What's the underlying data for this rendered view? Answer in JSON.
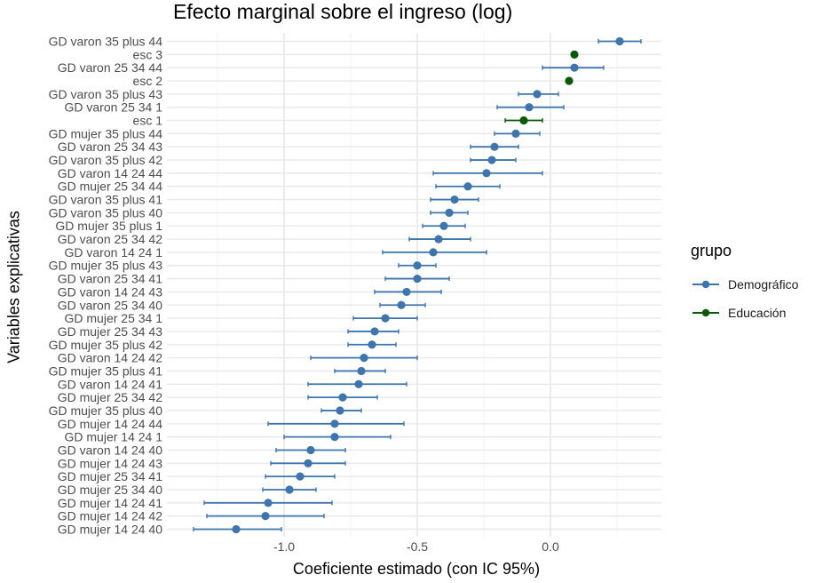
{
  "chart_data": {
    "type": "scatter",
    "title": "Efecto marginal sobre el ingreso (log)",
    "xlabel": "Coeficiente estimado (con IC 95%)",
    "ylabel": "Variables explicativas",
    "xlim": [
      -1.4,
      0.43
    ],
    "x_ticks": [
      -1.0,
      -0.5,
      0.0
    ],
    "x_tick_labels": [
      "-1.0",
      "-0.5",
      "0.0"
    ],
    "grid": true,
    "legend": {
      "title": "grupo",
      "placement": "right",
      "entries": [
        {
          "name": "Demográfico",
          "color": "#3e75ac"
        },
        {
          "name": "Educación",
          "color": "#0b5a0b"
        }
      ]
    },
    "points": [
      {
        "label": "GD varon 35 plus 44",
        "group": "Demográfico",
        "estimate": 0.26,
        "low": 0.18,
        "high": 0.34
      },
      {
        "label": "esc 3",
        "group": "Educación",
        "estimate": 0.09,
        "low": 0.09,
        "high": 0.09
      },
      {
        "label": "GD varon 25 34 44",
        "group": "Demográfico",
        "estimate": 0.09,
        "low": -0.03,
        "high": 0.2
      },
      {
        "label": "esc 2",
        "group": "Educación",
        "estimate": 0.07,
        "low": 0.07,
        "high": 0.07
      },
      {
        "label": "GD varon 35 plus 43",
        "group": "Demográfico",
        "estimate": -0.05,
        "low": -0.12,
        "high": 0.03
      },
      {
        "label": "GD varon 25 34 1",
        "group": "Demográfico",
        "estimate": -0.08,
        "low": -0.2,
        "high": 0.05
      },
      {
        "label": "esc 1",
        "group": "Educación",
        "estimate": -0.1,
        "low": -0.17,
        "high": -0.03
      },
      {
        "label": "GD mujer 35 plus 44",
        "group": "Demográfico",
        "estimate": -0.13,
        "low": -0.21,
        "high": -0.04
      },
      {
        "label": "GD varon 25 34 43",
        "group": "Demográfico",
        "estimate": -0.21,
        "low": -0.3,
        "high": -0.12
      },
      {
        "label": "GD varon 35 plus 42",
        "group": "Demográfico",
        "estimate": -0.22,
        "low": -0.3,
        "high": -0.13
      },
      {
        "label": "GD varon 14 24 44",
        "group": "Demográfico",
        "estimate": -0.24,
        "low": -0.44,
        "high": -0.03
      },
      {
        "label": "GD mujer 25 34 44",
        "group": "Demográfico",
        "estimate": -0.31,
        "low": -0.43,
        "high": -0.19
      },
      {
        "label": "GD varon 35 plus 41",
        "group": "Demográfico",
        "estimate": -0.36,
        "low": -0.45,
        "high": -0.27
      },
      {
        "label": "GD varon 35 plus 40",
        "group": "Demográfico",
        "estimate": -0.38,
        "low": -0.45,
        "high": -0.31
      },
      {
        "label": "GD mujer 35 plus 1",
        "group": "Demográfico",
        "estimate": -0.4,
        "low": -0.48,
        "high": -0.32
      },
      {
        "label": "GD varon 25 34 42",
        "group": "Demográfico",
        "estimate": -0.42,
        "low": -0.53,
        "high": -0.3
      },
      {
        "label": "GD varon 14 24 1",
        "group": "Demográfico",
        "estimate": -0.44,
        "low": -0.63,
        "high": -0.24
      },
      {
        "label": "GD mujer 35 plus 43",
        "group": "Demográfico",
        "estimate": -0.5,
        "low": -0.57,
        "high": -0.43
      },
      {
        "label": "GD varon 25 34 41",
        "group": "Demográfico",
        "estimate": -0.5,
        "low": -0.62,
        "high": -0.38
      },
      {
        "label": "GD varon 14 24 43",
        "group": "Demográfico",
        "estimate": -0.54,
        "low": -0.66,
        "high": -0.41
      },
      {
        "label": "GD varon 25 34 40",
        "group": "Demográfico",
        "estimate": -0.56,
        "low": -0.64,
        "high": -0.47
      },
      {
        "label": "GD mujer 25 34 1",
        "group": "Demográfico",
        "estimate": -0.62,
        "low": -0.74,
        "high": -0.5
      },
      {
        "label": "GD mujer 25 34 43",
        "group": "Demográfico",
        "estimate": -0.66,
        "low": -0.76,
        "high": -0.57
      },
      {
        "label": "GD mujer 35 plus 42",
        "group": "Demográfico",
        "estimate": -0.67,
        "low": -0.76,
        "high": -0.58
      },
      {
        "label": "GD varon 14 24 42",
        "group": "Demográfico",
        "estimate": -0.7,
        "low": -0.9,
        "high": -0.5
      },
      {
        "label": "GD mujer 35 plus 41",
        "group": "Demográfico",
        "estimate": -0.71,
        "low": -0.81,
        "high": -0.62
      },
      {
        "label": "GD varon 14 24 41",
        "group": "Demográfico",
        "estimate": -0.72,
        "low": -0.91,
        "high": -0.54
      },
      {
        "label": "GD mujer 25 34 42",
        "group": "Demográfico",
        "estimate": -0.78,
        "low": -0.91,
        "high": -0.65
      },
      {
        "label": "GD mujer 35 plus 40",
        "group": "Demográfico",
        "estimate": -0.79,
        "low": -0.86,
        "high": -0.71
      },
      {
        "label": "GD mujer 14 24 44",
        "group": "Demográfico",
        "estimate": -0.81,
        "low": -1.06,
        "high": -0.55
      },
      {
        "label": "GD mujer 14 24 1",
        "group": "Demográfico",
        "estimate": -0.81,
        "low": -1.0,
        "high": -0.6
      },
      {
        "label": "GD varon 14 24 40",
        "group": "Demográfico",
        "estimate": -0.9,
        "low": -1.03,
        "high": -0.77
      },
      {
        "label": "GD mujer 14 24 43",
        "group": "Demográfico",
        "estimate": -0.91,
        "low": -1.05,
        "high": -0.77
      },
      {
        "label": "GD mujer 25 34 41",
        "group": "Demográfico",
        "estimate": -0.94,
        "low": -1.07,
        "high": -0.81
      },
      {
        "label": "GD mujer 25 34 40",
        "group": "Demográfico",
        "estimate": -0.98,
        "low": -1.08,
        "high": -0.88
      },
      {
        "label": "GD mujer 14 24 41",
        "group": "Demográfico",
        "estimate": -1.06,
        "low": -1.3,
        "high": -0.82
      },
      {
        "label": "GD mujer 14 24 42",
        "group": "Demográfico",
        "estimate": -1.07,
        "low": -1.29,
        "high": -0.85
      },
      {
        "label": "GD mujer 14 24 40",
        "group": "Demográfico",
        "estimate": -1.18,
        "low": -1.34,
        "high": -1.01
      }
    ]
  }
}
